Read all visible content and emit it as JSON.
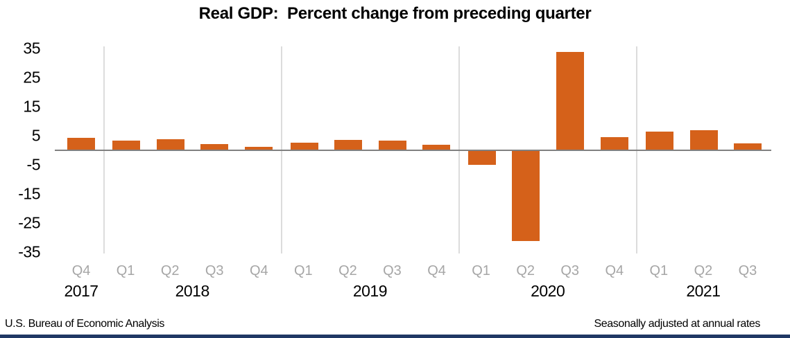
{
  "title": "Real GDP:  Percent change from preceding quarter",
  "footer": {
    "source": "U.S. Bureau of Economic Analysis",
    "note": "Seasonally adjusted at annual rates"
  },
  "colors": {
    "bar": "#d5611a",
    "axis_line": "#808080",
    "gridline": "#dcdcdc",
    "quarter_label": "#a6a6a6",
    "text": "#000000",
    "bottom_band": "#1f3864"
  },
  "chart_data": {
    "type": "bar",
    "title": "Real GDP:  Percent change from preceding quarter",
    "unit": "percent change at annual rate",
    "ylim": [
      -35,
      35
    ],
    "yticks": [
      35,
      25,
      15,
      5,
      -5,
      -15,
      -25,
      -35
    ],
    "grid": "vertical-separators-between-years",
    "legend": "none",
    "bar_color": "#d5611a",
    "groups": [
      {
        "year": "2017",
        "quarters": [
          "Q4"
        ],
        "values": [
          4.1
        ]
      },
      {
        "year": "2018",
        "quarters": [
          "Q1",
          "Q2",
          "Q3",
          "Q4"
        ],
        "values": [
          3.3,
          3.6,
          2.1,
          1.1
        ]
      },
      {
        "year": "2019",
        "quarters": [
          "Q1",
          "Q2",
          "Q3",
          "Q4"
        ],
        "values": [
          2.6,
          3.5,
          3.1,
          1.9
        ]
      },
      {
        "year": "2020",
        "quarters": [
          "Q1",
          "Q2",
          "Q3",
          "Q4"
        ],
        "values": [
          -5.1,
          -31.2,
          33.8,
          4.5
        ]
      },
      {
        "year": "2021",
        "quarters": [
          "Q1",
          "Q2",
          "Q3"
        ],
        "values": [
          6.3,
          6.7,
          2.3
        ]
      }
    ]
  }
}
